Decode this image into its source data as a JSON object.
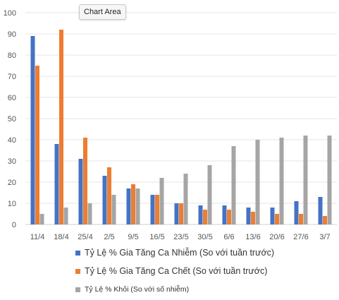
{
  "tooltip": "Chart Area",
  "colors": {
    "series0": "#4472c4",
    "series1": "#ed7d31",
    "series2": "#a5a5a5",
    "grid": "#e6e6e6",
    "axis": "#d0d0d0",
    "text": "#555555"
  },
  "chart_data": {
    "type": "bar",
    "categories": [
      "11/4",
      "18/4",
      "25/4",
      "2/5",
      "9/5",
      "16/5",
      "23/5",
      "30/5",
      "6/6",
      "13/6",
      "20/6",
      "27/6",
      "3/7"
    ],
    "series": [
      {
        "name": "Tỷ Lệ % Gia Tăng Ca Nhiễm (So với tuần trước)",
        "values": [
          89,
          38,
          31,
          23,
          17,
          14,
          10,
          9,
          9,
          8,
          8,
          11,
          13
        ]
      },
      {
        "name": "Tỷ Lệ % Gia Tăng Ca Chết (So với tuần trước)",
        "values": [
          75,
          92,
          41,
          27,
          19,
          14,
          10,
          7,
          7,
          6,
          5,
          5,
          4
        ]
      },
      {
        "name": "Tỷ Lệ % Khỏi (So với số nhiễm)",
        "values": [
          5,
          8,
          10,
          14,
          17,
          22,
          24,
          28,
          37,
          40,
          41,
          42,
          42
        ]
      }
    ],
    "ylim": [
      0,
      100
    ],
    "yticks": [
      0,
      10,
      20,
      30,
      40,
      50,
      60,
      70,
      80,
      90,
      100
    ],
    "grid": true,
    "legend": "bottom",
    "xlabel": "",
    "ylabel": ""
  }
}
